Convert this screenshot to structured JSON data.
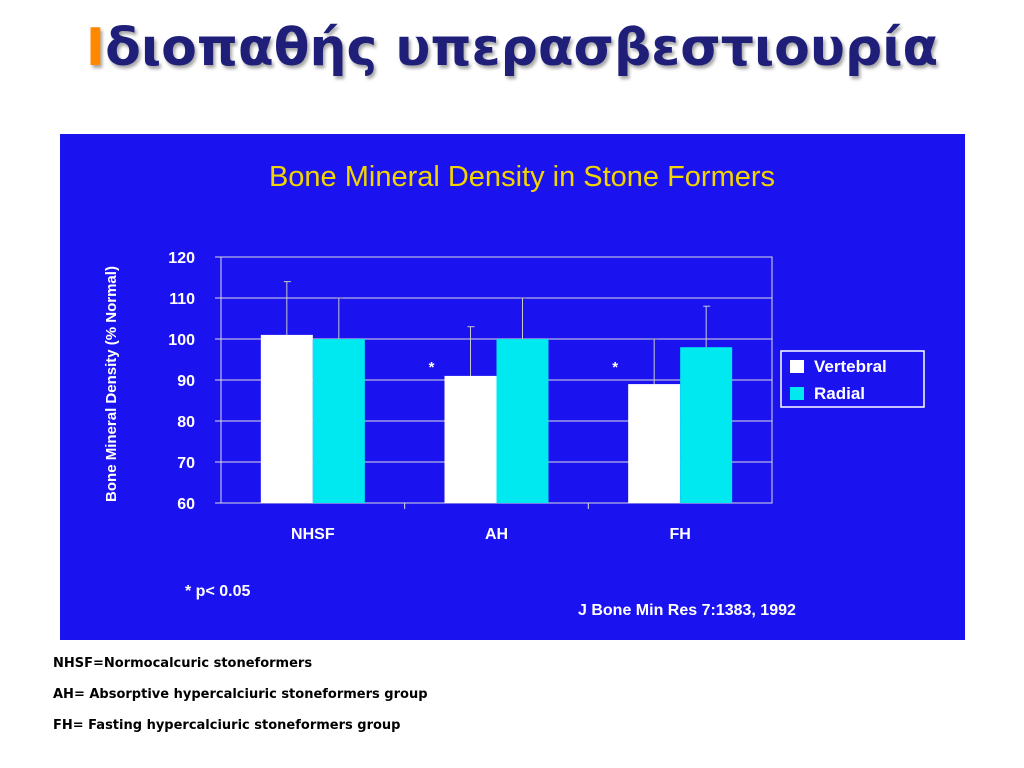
{
  "title": {
    "first_letter": "Ι",
    "rest": "διοπαθής υπερασβεστιουρία"
  },
  "colors": {
    "title_accent": "#ff8800",
    "title_main": "#1f1f7a",
    "panel_bg": "#1b12f0",
    "chart_title": "#f2d400",
    "vertebral": "#ffffff",
    "radial": "#00e8f0"
  },
  "chart_data": {
    "type": "bar",
    "title": "Bone Mineral Density in Stone Formers",
    "xlabel": "",
    "ylabel": "Bone Mineral Density (% Normal)",
    "ylim": [
      60,
      120
    ],
    "yticks": [
      120,
      110,
      100,
      90,
      80,
      70,
      60
    ],
    "categories": [
      "NHSF",
      "AH",
      "FH"
    ],
    "series": [
      {
        "name": "Vertebral",
        "values": [
          101,
          91,
          89
        ],
        "error": [
          13,
          12,
          11
        ],
        "color": "#ffffff"
      },
      {
        "name": "Radial",
        "values": [
          100,
          100,
          98
        ],
        "error": [
          10,
          10,
          10
        ],
        "color": "#00e8f0"
      }
    ],
    "significance_marks": [
      "",
      "*",
      "*"
    ],
    "legend_position": "right",
    "footnote": "* p< 0.05",
    "source": "J Bone Min Res 7:1383, 1992"
  },
  "notes": [
    "NHSF=Normocalcuric stoneformers",
    "AH= Absorptive hypercalciuric  stoneformers group",
    "FH= Fasting  hypercalciuric  stoneformers group"
  ]
}
